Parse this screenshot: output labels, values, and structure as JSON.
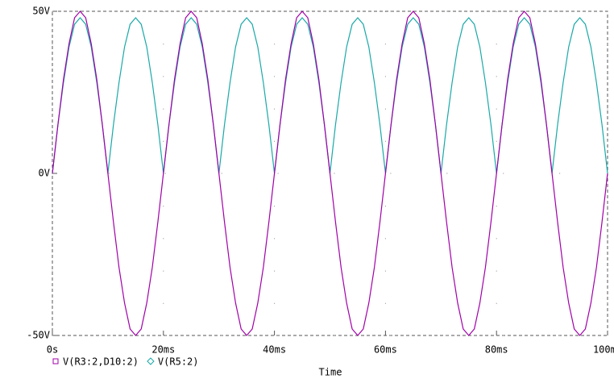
{
  "chart_data": {
    "type": "line",
    "xlabel": "Time",
    "x": [
      0,
      1,
      2,
      3,
      4,
      5,
      6,
      7,
      8,
      9,
      10,
      11,
      12,
      13,
      14,
      15,
      16,
      17,
      18,
      19,
      20,
      21,
      22,
      23,
      24,
      25,
      26,
      27,
      28,
      29,
      30,
      31,
      32,
      33,
      34,
      35,
      36,
      37,
      38,
      39,
      40,
      41,
      42,
      43,
      44,
      45,
      46,
      47,
      48,
      49,
      50,
      51,
      52,
      53,
      54,
      55,
      56,
      57,
      58,
      59,
      60,
      61,
      62,
      63,
      64,
      65,
      66,
      67,
      68,
      69,
      70,
      71,
      72,
      73,
      74,
      75,
      76,
      77,
      78,
      79,
      80,
      81,
      82,
      83,
      84,
      85,
      86,
      87,
      88,
      89,
      90,
      91,
      92,
      93,
      94,
      95,
      96,
      97,
      98,
      99,
      100
    ],
    "series": [
      {
        "name": "V(R3:2,D10:2)",
        "color": "#a000a8",
        "marker": "square",
        "values": [
          0,
          15,
          29,
          40,
          48,
          50,
          48,
          40,
          29,
          15,
          0,
          -15,
          -29,
          -40,
          -48,
          -50,
          -48,
          -40,
          -29,
          -15,
          0,
          15,
          29,
          40,
          48,
          50,
          48,
          40,
          29,
          15,
          0,
          -15,
          -29,
          -40,
          -48,
          -50,
          -48,
          -40,
          -29,
          -15,
          0,
          15,
          29,
          40,
          48,
          50,
          48,
          40,
          29,
          15,
          0,
          -15,
          -29,
          -40,
          -48,
          -50,
          -48,
          -40,
          -29,
          -15,
          0,
          15,
          29,
          40,
          48,
          50,
          48,
          40,
          29,
          15,
          0,
          -15,
          -29,
          -40,
          -48,
          -50,
          -48,
          -40,
          -29,
          -15,
          0,
          15,
          29,
          40,
          48,
          50,
          48,
          40,
          29,
          15,
          0,
          -15,
          -29,
          -40,
          -48,
          -50,
          -48,
          -40,
          -29,
          -15,
          0
        ]
      },
      {
        "name": "V(R5:2)",
        "color": "#1aa8a8",
        "marker": "diamond",
        "values": [
          0,
          15,
          28,
          39,
          46,
          48,
          46,
          39,
          28,
          15,
          0,
          15,
          28,
          39,
          46,
          48,
          46,
          39,
          28,
          15,
          0,
          15,
          28,
          39,
          46,
          48,
          46,
          39,
          28,
          15,
          0,
          15,
          28,
          39,
          46,
          48,
          46,
          39,
          28,
          15,
          0,
          15,
          28,
          39,
          46,
          48,
          46,
          39,
          28,
          15,
          0,
          15,
          28,
          39,
          46,
          48,
          46,
          39,
          28,
          15,
          0,
          15,
          28,
          39,
          46,
          48,
          46,
          39,
          28,
          15,
          0,
          15,
          28,
          39,
          46,
          48,
          46,
          39,
          28,
          15,
          0,
          15,
          28,
          39,
          46,
          48,
          46,
          39,
          28,
          15,
          0,
          15,
          28,
          39,
          46,
          48,
          46,
          39,
          28,
          15,
          0
        ]
      }
    ],
    "xlim": [
      0,
      100
    ],
    "xticks": [
      {
        "value": 0,
        "label": "0s"
      },
      {
        "value": 20,
        "label": "20ms"
      },
      {
        "value": 40,
        "label": "40ms"
      },
      {
        "value": 60,
        "label": "60ms"
      },
      {
        "value": 80,
        "label": "80ms"
      },
      {
        "value": 100,
        "label": "100ms"
      }
    ],
    "ylim": [
      -50,
      50
    ],
    "yticks": [
      {
        "value": -50,
        "label": "-50V"
      },
      {
        "value": 0,
        "label": "0V"
      },
      {
        "value": 50,
        "label": "50V"
      }
    ],
    "grid": true
  }
}
